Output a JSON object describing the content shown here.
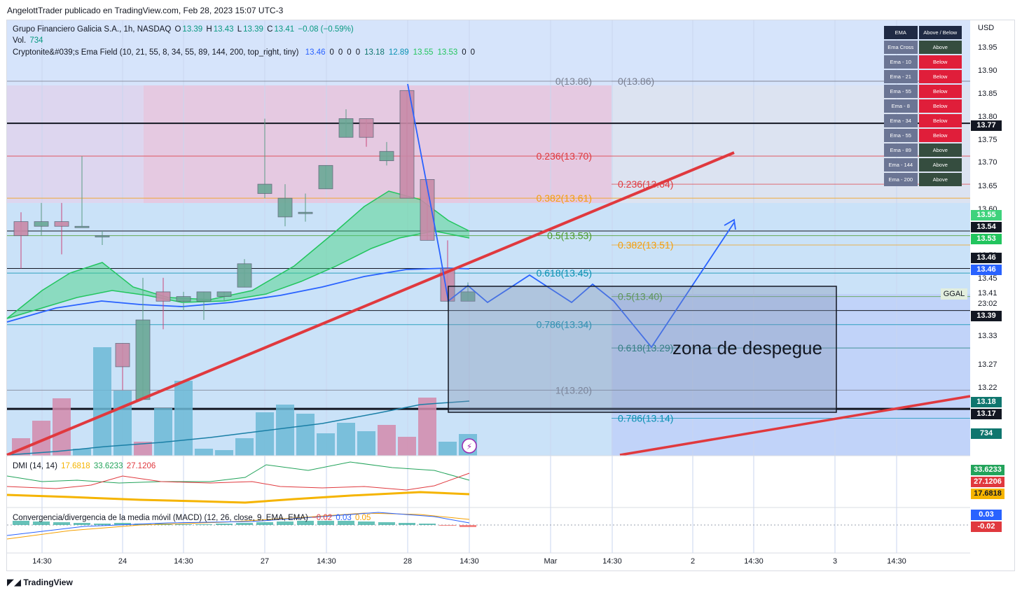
{
  "header": {
    "published": "AngelottTrader publicado en TradingView.com, Feb 28, 2023 15:07 UTC-3"
  },
  "legend": {
    "main": "Grupo Financiero Galicia S.A., 1h, NASDAQ",
    "o_label": "O",
    "o": "13.39",
    "h_label": "H",
    "h": "13.43",
    "l_label": "L",
    "l": "13.39",
    "c_label": "C",
    "c": "13.41",
    "chg": "−0.08 (−0.59%)",
    "vol_label": "Vol.",
    "vol": "734",
    "ema_label": "Cryptonite&#039;s Ema Field (10, 21, 55, 8, 34, 55, 89, 144, 200, top_right, tiny)",
    "ema_values": [
      "13.46",
      "0",
      "0",
      "0",
      "0",
      "13.18",
      "12.89",
      "13.55",
      "13.53",
      "0",
      "0"
    ],
    "dmi_label": "DMI (14, 14)",
    "dmi_values": [
      "17.6818",
      "33.6233",
      "27.1206"
    ],
    "macd_label": "Convergencia/divergencia de la media móvil (MACD) (12, 26, close, 9, EMA, EMA)",
    "macd_values": [
      "−0.02",
      "0.03",
      "0.05"
    ]
  },
  "ema_table": {
    "headers": [
      "EMA",
      "Above / Below"
    ],
    "rows": [
      {
        "name": "Ema Cross",
        "state": "Above"
      },
      {
        "name": "Ema - 10",
        "state": "Below"
      },
      {
        "name": "Ema - 21",
        "state": "Below"
      },
      {
        "name": "Ema - 55",
        "state": "Below"
      },
      {
        "name": "Ema - 8",
        "state": "Below"
      },
      {
        "name": "Ema - 34",
        "state": "Below"
      },
      {
        "name": "Ema - 55",
        "state": "Below"
      },
      {
        "name": "Ema - 89",
        "state": "Above"
      },
      {
        "name": "Ema - 144",
        "state": "Above"
      },
      {
        "name": "Ema - 200",
        "state": "Above"
      }
    ]
  },
  "annotation": {
    "zone": "zona de despegue",
    "symbol": "GGAL",
    "countdown": "23:02"
  },
  "colors": {
    "up": "#5b9c86",
    "down": "#c9477a",
    "trend": "#e0393e",
    "blue": "#2962ff",
    "ema_fill": "#3fd27c",
    "fib_bg": "#a8c8f5"
  },
  "chart_data": {
    "type": "candlestick",
    "currency": "USD",
    "y_ticks": [
      "13.95",
      "13.90",
      "13.85",
      "13.80",
      "13.75",
      "13.70",
      "13.65",
      "13.60",
      "13.50",
      "13.45",
      "13.33",
      "13.27",
      "13.22",
      "13.2"
    ],
    "ylim": [
      13.06,
      13.99
    ],
    "x_ticks": [
      "14:30",
      "24",
      "14:30",
      "27",
      "14:30",
      "28",
      "14:30",
      "Mar",
      "14:30",
      "2",
      "14:30",
      "3",
      "14:30"
    ],
    "candles": [
      {
        "o": 13.56,
        "h": 13.58,
        "l": 13.46,
        "c": 13.53
      },
      {
        "o": 13.55,
        "h": 13.6,
        "l": 13.53,
        "c": 13.56
      },
      {
        "o": 13.56,
        "h": 13.6,
        "l": 13.49,
        "c": 13.55
      },
      {
        "o": 13.55,
        "h": 13.7,
        "l": 13.55,
        "c": 13.55
      },
      {
        "o": 13.53,
        "h": 13.54,
        "l": 13.51,
        "c": 13.53
      },
      {
        "o": 13.3,
        "h": 13.3,
        "l": 13.2,
        "c": 13.25
      },
      {
        "o": 13.18,
        "h": 13.44,
        "l": 13.18,
        "c": 13.35
      },
      {
        "o": 13.41,
        "h": 13.44,
        "l": 13.33,
        "c": 13.39
      },
      {
        "o": 13.39,
        "h": 13.41,
        "l": 13.37,
        "c": 13.4
      },
      {
        "o": 13.39,
        "h": 13.41,
        "l": 13.35,
        "c": 13.41
      },
      {
        "o": 13.4,
        "h": 13.41,
        "l": 13.39,
        "c": 13.41
      },
      {
        "o": 13.42,
        "h": 13.48,
        "l": 13.42,
        "c": 13.47
      },
      {
        "o": 13.62,
        "h": 13.78,
        "l": 13.61,
        "c": 13.64
      },
      {
        "o": 13.57,
        "h": 13.64,
        "l": 13.55,
        "c": 13.61
      },
      {
        "o": 13.58,
        "h": 13.62,
        "l": 13.56,
        "c": 13.58
      },
      {
        "o": 13.63,
        "h": 13.68,
        "l": 13.63,
        "c": 13.68
      },
      {
        "o": 13.74,
        "h": 13.8,
        "l": 13.74,
        "c": 13.78
      },
      {
        "o": 13.78,
        "h": 13.78,
        "l": 13.72,
        "c": 13.74
      },
      {
        "o": 13.69,
        "h": 13.73,
        "l": 13.68,
        "c": 13.71
      },
      {
        "o": 13.84,
        "h": 13.84,
        "l": 13.61,
        "c": 13.61
      },
      {
        "o": 13.65,
        "h": 13.65,
        "l": 13.52,
        "c": 13.52
      },
      {
        "o": 13.46,
        "h": 13.52,
        "l": 13.39,
        "c": 13.39
      },
      {
        "o": 13.39,
        "h": 13.43,
        "l": 13.39,
        "c": 13.41
      }
    ],
    "fib_right": [
      {
        "label": "0(13.86)",
        "value": 13.86
      },
      {
        "label": "0.236(13.64)",
        "value": 13.64
      },
      {
        "label": "0.382(13.51)",
        "value": 13.51
      },
      {
        "label": "0.5(13.40)",
        "value": 13.4
      },
      {
        "label": "0.618(13.29)",
        "value": 13.29
      },
      {
        "label": "0.786(13.14)",
        "value": 13.14
      }
    ],
    "fib_left": [
      {
        "label": "0(13.86)",
        "value": 13.86
      },
      {
        "label": "0.236(13.70)",
        "value": 13.7
      },
      {
        "label": "0.382(13.61)",
        "value": 13.61
      },
      {
        "label": "0.5(13.53)",
        "value": 13.53
      },
      {
        "label": "0.618(13.45)",
        "value": 13.45
      },
      {
        "label": "0.786(13.34)",
        "value": 13.34
      },
      {
        "label": "1(13.20)",
        "value": 13.2
      }
    ],
    "price_tags": [
      {
        "value": "13.77",
        "y": 13.77,
        "color": "#131722"
      },
      {
        "value": "13.55",
        "y": 13.55,
        "color": "#3fd27c"
      },
      {
        "value": "13.54",
        "y": 13.54,
        "color": "#131722"
      },
      {
        "value": "13.53",
        "y": 13.53,
        "color": "#22c55e"
      },
      {
        "value": "13.46",
        "y": 13.46,
        "color": "#131722"
      },
      {
        "value": "13.46",
        "y": 13.435,
        "color": "#2962ff"
      },
      {
        "value": "13.41",
        "y": 13.41,
        "color": "none"
      },
      {
        "value": "13.39",
        "y": 13.37,
        "color": "#131722"
      },
      {
        "value": "13.18",
        "y": 13.185,
        "color": "#0f766e"
      },
      {
        "value": "13.17",
        "y": 13.16,
        "color": "#131722"
      },
      {
        "value": "734",
        "y": 13.1,
        "color": "#0f766e"
      }
    ],
    "dmi_tags": [
      {
        "value": "33.6233",
        "color": "#22a35a"
      },
      {
        "value": "27.1206",
        "color": "#e0393e"
      },
      {
        "value": "17.6818",
        "color": "#f5b400"
      }
    ],
    "macd_tags": [
      {
        "value": "0.03",
        "color": "#2962ff"
      },
      {
        "value": "-0.02",
        "color": "#e0393e"
      }
    ]
  }
}
